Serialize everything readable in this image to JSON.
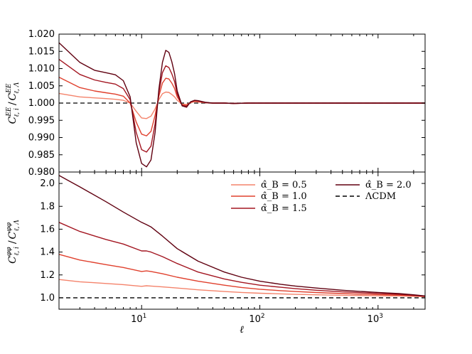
{
  "colors": {
    "s05": "#f4836b",
    "s10": "#e0402d",
    "s15": "#a31621",
    "s20": "#600010",
    "lcdm": "#000000"
  },
  "chart_data": [
    {
      "type": "line",
      "panel": "top",
      "xlabel": "",
      "ylabel": "C_{ℓ,i}^{EE} / C_{ℓ,Λ}^{EE}",
      "xscale": "log",
      "xlim": [
        2,
        2500
      ],
      "ylim": [
        0.98,
        1.02
      ],
      "yticks": [
        "1.020",
        "1.015",
        "1.010",
        "1.005",
        "1.000",
        "0.995",
        "0.990",
        "0.985",
        "0.980"
      ],
      "yticks_values": [
        1.02,
        1.015,
        1.01,
        1.005,
        1.0,
        0.995,
        0.99,
        0.985,
        0.98
      ],
      "x": [
        2,
        3,
        4,
        5,
        6,
        7,
        8,
        9,
        10,
        11,
        12,
        13,
        14,
        15,
        16,
        17,
        18,
        19,
        20,
        22,
        24,
        26,
        28,
        30,
        35,
        40,
        50,
        60,
        80,
        100,
        150,
        200,
        300,
        500,
        700,
        1000,
        1500,
        2000,
        2500
      ],
      "series": [
        {
          "key": "s05",
          "values": [
            1.0028,
            1.0018,
            1.0015,
            1.0013,
            1.0011,
            1.0008,
            1.0,
            0.9976,
            0.9957,
            0.9955,
            0.9962,
            0.9983,
            1.001,
            1.0027,
            1.0032,
            1.0031,
            1.0025,
            1.0018,
            1.0008,
            0.9997,
            0.9996,
            1.0001,
            1.0004,
            1.0003,
            1.0001,
            1.0,
            1.0,
            0.9999,
            1.0,
            1.0,
            1.0,
            1.0,
            1.0,
            1.0,
            1.0,
            1.0,
            1.0,
            1.0,
            1.0
          ]
        },
        {
          "key": "s10",
          "values": [
            1.0075,
            1.0045,
            1.0035,
            1.003,
            1.0026,
            1.002,
            1.0,
            0.9945,
            0.991,
            0.9905,
            0.9918,
            0.9965,
            1.002,
            1.0058,
            1.0072,
            1.007,
            1.0058,
            1.0042,
            1.0018,
            0.9995,
            0.9993,
            1.0002,
            1.0006,
            1.0005,
            1.0001,
            1.0,
            1.0,
            0.9999,
            1.0,
            1.0,
            1.0,
            1.0,
            1.0,
            1.0,
            1.0,
            1.0,
            1.0,
            1.0,
            1.0
          ]
        },
        {
          "key": "s15",
          "values": [
            1.0127,
            1.0083,
            1.0067,
            1.006,
            1.0055,
            1.0042,
            1.001,
            0.9915,
            0.9865,
            0.9858,
            0.9875,
            0.994,
            1.003,
            1.0088,
            1.0108,
            1.0103,
            1.0085,
            1.0062,
            1.0026,
            0.9993,
            0.9991,
            1.0003,
            1.0007,
            1.0006,
            1.0001,
            1.0,
            1.0,
            0.9999,
            1.0,
            1.0,
            1.0,
            1.0,
            1.0,
            1.0,
            1.0,
            1.0,
            1.0,
            1.0,
            1.0
          ]
        },
        {
          "key": "s20",
          "values": [
            1.0175,
            1.0118,
            1.0095,
            1.0088,
            1.0082,
            1.0065,
            1.0018,
            0.9885,
            0.9825,
            0.9815,
            0.9835,
            0.9915,
            1.004,
            1.0118,
            1.0153,
            1.0147,
            1.012,
            1.0085,
            1.0035,
            0.9992,
            0.9988,
            1.0004,
            1.0008,
            1.0007,
            1.0002,
            1.0,
            1.0,
            0.9999,
            1.0,
            1.0,
            1.0,
            1.0,
            1.0,
            1.0,
            1.0,
            1.0,
            1.0,
            1.0,
            1.0
          ]
        }
      ],
      "reference_line": {
        "key": "lcdm",
        "value": 1.0,
        "style": "dashed"
      }
    },
    {
      "type": "line",
      "panel": "bottom",
      "xlabel": "ℓ",
      "ylabel": "C_{ℓ,i}^{φφ} / C_{ℓ,Λ}^{φφ}",
      "xscale": "log",
      "xlim": [
        2,
        2500
      ],
      "ylim": [
        0.9,
        2.1
      ],
      "xticks_values": [
        10,
        100,
        1000
      ],
      "xticks": [
        "10",
        "10",
        "10"
      ],
      "xticks_exp": [
        "1",
        "2",
        "3"
      ],
      "yticks": [
        "2.0",
        "1.8",
        "1.6",
        "1.4",
        "1.2",
        "1.0"
      ],
      "yticks_values": [
        2.0,
        1.8,
        1.6,
        1.4,
        1.2,
        1.0
      ],
      "x": [
        2,
        3,
        5,
        7,
        10,
        11,
        12,
        15,
        20,
        30,
        50,
        70,
        100,
        150,
        200,
        300,
        500,
        700,
        1000,
        1500,
        2000,
        2500
      ],
      "series": [
        {
          "key": "s05",
          "name": "α̂_B = 0.5",
          "values": [
            1.16,
            1.14,
            1.125,
            1.115,
            1.1,
            1.105,
            1.103,
            1.095,
            1.085,
            1.07,
            1.055,
            1.047,
            1.04,
            1.034,
            1.03,
            1.026,
            1.022,
            1.02,
            1.018,
            1.016,
            1.013,
            1.01
          ]
        },
        {
          "key": "s10",
          "name": "α̂_B = 1.0",
          "values": [
            1.38,
            1.33,
            1.29,
            1.265,
            1.23,
            1.235,
            1.23,
            1.21,
            1.18,
            1.145,
            1.11,
            1.09,
            1.075,
            1.062,
            1.055,
            1.046,
            1.037,
            1.032,
            1.028,
            1.023,
            1.018,
            1.012
          ]
        },
        {
          "key": "s15",
          "name": "α̂_B = 1.5",
          "values": [
            1.66,
            1.58,
            1.51,
            1.47,
            1.41,
            1.41,
            1.4,
            1.36,
            1.3,
            1.225,
            1.165,
            1.135,
            1.11,
            1.092,
            1.08,
            1.066,
            1.052,
            1.045,
            1.038,
            1.03,
            1.022,
            1.014
          ]
        },
        {
          "key": "s20",
          "name": "α̂_B = 2.0",
          "values": [
            2.07,
            1.97,
            1.84,
            1.75,
            1.66,
            1.64,
            1.62,
            1.54,
            1.43,
            1.32,
            1.225,
            1.18,
            1.145,
            1.118,
            1.103,
            1.085,
            1.066,
            1.056,
            1.047,
            1.037,
            1.026,
            1.016
          ]
        }
      ],
      "reference_line": {
        "key": "lcdm",
        "value": 1.0,
        "style": "dashed",
        "name": "ΛCDM"
      },
      "legend": {
        "placement": "top-right",
        "columns": 2
      }
    }
  ]
}
